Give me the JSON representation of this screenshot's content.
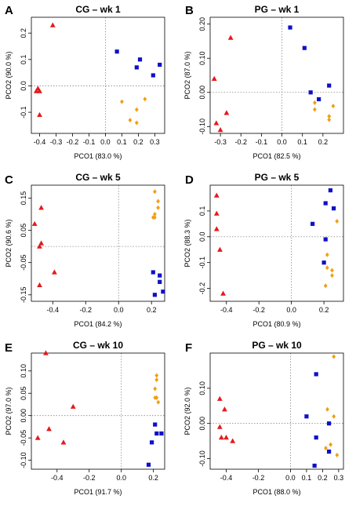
{
  "colors": {
    "triangle": "#e31a1c",
    "square": "#1010c8",
    "diamond": "#f0a010"
  },
  "chart_data": [
    {
      "type": "scatter",
      "letter": "A",
      "title": "CG – wk 1",
      "xlabel": "PCO1 (83.0 %)",
      "ylabel": "PCO2 (90.0 %)",
      "xlim": [
        -0.45,
        0.36
      ],
      "ylim": [
        -0.18,
        0.26
      ],
      "xticks": [
        "-0.4",
        "-0.3",
        "-0.2",
        "-0.1",
        "0.0",
        "0.1",
        "0.2",
        "0.3"
      ],
      "xtickvals": [
        -0.4,
        -0.3,
        -0.2,
        -0.1,
        0.0,
        0.1,
        0.2,
        0.3
      ],
      "yticks": [
        "-0.1",
        "0.0",
        "0.1",
        "0.2"
      ],
      "ytickvals": [
        -0.1,
        0.0,
        0.1,
        0.2
      ],
      "grid": "dotted zero lines",
      "series": [
        {
          "marker": "triangle",
          "points": [
            [
              -0.32,
              0.23
            ],
            [
              -0.41,
              -0.01
            ],
            [
              -0.42,
              -0.02
            ],
            [
              -0.4,
              -0.02
            ],
            [
              -0.4,
              -0.11
            ]
          ]
        },
        {
          "marker": "square",
          "points": [
            [
              0.07,
              0.13
            ],
            [
              0.21,
              0.1
            ],
            [
              0.19,
              0.07
            ],
            [
              0.33,
              0.08
            ],
            [
              0.29,
              0.04
            ]
          ]
        },
        {
          "marker": "diamond",
          "points": [
            [
              0.1,
              -0.06
            ],
            [
              0.24,
              -0.05
            ],
            [
              0.19,
              -0.09
            ],
            [
              0.15,
              -0.13
            ],
            [
              0.19,
              -0.14
            ]
          ]
        }
      ]
    },
    {
      "type": "scatter",
      "letter": "B",
      "title": "PG – wk 1",
      "xlabel": "PCO1 (82.5 %)",
      "ylabel": "PCO2 (87.0 %)",
      "xlim": [
        -0.35,
        0.3
      ],
      "ylim": [
        -0.12,
        0.22
      ],
      "xticks": [
        "-0.3",
        "-0.2",
        "-0.1",
        "0.0",
        "0.1",
        "0.2"
      ],
      "xtickvals": [
        -0.3,
        -0.2,
        -0.1,
        0.0,
        0.1,
        0.2
      ],
      "yticks": [
        "-0.10",
        "0.00",
        "0.10",
        "0.20"
      ],
      "ytickvals": [
        -0.1,
        0.0,
        0.1,
        0.2
      ],
      "grid": "dotted zero lines",
      "series": [
        {
          "marker": "triangle",
          "points": [
            [
              -0.25,
              0.16
            ],
            [
              -0.33,
              0.04
            ],
            [
              -0.27,
              -0.06
            ],
            [
              -0.32,
              -0.09
            ],
            [
              -0.3,
              -0.11
            ]
          ]
        },
        {
          "marker": "square",
          "points": [
            [
              0.04,
              0.19
            ],
            [
              0.11,
              0.13
            ],
            [
              0.23,
              0.02
            ],
            [
              0.14,
              0.0
            ],
            [
              0.18,
              -0.02
            ]
          ]
        },
        {
          "marker": "diamond",
          "points": [
            [
              0.16,
              -0.03
            ],
            [
              0.25,
              -0.04
            ],
            [
              0.16,
              -0.05
            ],
            [
              0.23,
              -0.07
            ],
            [
              0.23,
              -0.08
            ]
          ]
        }
      ]
    },
    {
      "type": "scatter",
      "letter": "C",
      "title": "CG – wk 5",
      "xlabel": "PCO1 (84.2 %)",
      "ylabel": "PCO2 (90.6 %)",
      "xlim": [
        -0.53,
        0.28
      ],
      "ylim": [
        -0.17,
        0.19
      ],
      "xticks": [
        "-0.4",
        "-0.2",
        "0.0",
        "0.2"
      ],
      "xtickvals": [
        -0.4,
        -0.2,
        0.0,
        0.2
      ],
      "yticks": [
        "-0.15",
        "-0.05",
        "0.05",
        "0.15"
      ],
      "ytickvals": [
        -0.15,
        -0.05,
        0.05,
        0.15
      ],
      "grid": "dotted zero lines",
      "series": [
        {
          "marker": "triangle",
          "points": [
            [
              -0.47,
              0.12
            ],
            [
              -0.51,
              0.07
            ],
            [
              -0.47,
              0.01
            ],
            [
              -0.48,
              0.0
            ],
            [
              -0.39,
              -0.08
            ],
            [
              -0.48,
              -0.12
            ]
          ]
        },
        {
          "marker": "square",
          "points": [
            [
              0.21,
              -0.08
            ],
            [
              0.25,
              -0.09
            ],
            [
              0.25,
              -0.11
            ],
            [
              0.27,
              -0.14
            ],
            [
              0.22,
              -0.15
            ]
          ]
        },
        {
          "marker": "diamond",
          "points": [
            [
              0.22,
              0.17
            ],
            [
              0.24,
              0.14
            ],
            [
              0.24,
              0.12
            ],
            [
              0.22,
              0.1
            ],
            [
              0.21,
              0.09
            ],
            [
              0.22,
              0.09
            ]
          ]
        }
      ]
    },
    {
      "type": "scatter",
      "letter": "D",
      "title": "PG – wk 5",
      "xlabel": "PCO1 (80.9 %)",
      "ylabel": "PCO2 (88.3 %)",
      "xlim": [
        -0.5,
        0.32
      ],
      "ylim": [
        -0.25,
        0.2
      ],
      "xticks": [
        "-0.4",
        "-0.2",
        "0.0",
        "0.2"
      ],
      "xtickvals": [
        -0.4,
        -0.2,
        0.0,
        0.2
      ],
      "yticks": [
        "-0.2",
        "-0.1",
        "0.0",
        "0.1"
      ],
      "ytickvals": [
        -0.2,
        -0.1,
        0.0,
        0.1
      ],
      "grid": "dotted zero lines",
      "series": [
        {
          "marker": "triangle",
          "points": [
            [
              -0.46,
              0.16
            ],
            [
              -0.46,
              0.09
            ],
            [
              -0.46,
              0.03
            ],
            [
              -0.44,
              -0.05
            ],
            [
              -0.42,
              -0.22
            ]
          ]
        },
        {
          "marker": "square",
          "points": [
            [
              0.24,
              0.18
            ],
            [
              0.21,
              0.13
            ],
            [
              0.26,
              0.11
            ],
            [
              0.13,
              0.05
            ],
            [
              0.21,
              -0.01
            ],
            [
              0.2,
              -0.1
            ]
          ]
        },
        {
          "marker": "diamond",
          "points": [
            [
              0.28,
              0.06
            ],
            [
              0.22,
              -0.07
            ],
            [
              0.22,
              -0.12
            ],
            [
              0.25,
              -0.13
            ],
            [
              0.25,
              -0.15
            ],
            [
              0.21,
              -0.19
            ]
          ]
        }
      ]
    },
    {
      "type": "scatter",
      "letter": "E",
      "title": "CG – wk 10",
      "xlabel": "PCO1 (91.7 %)",
      "ylabel": "PCO2 (97.0 %)",
      "xlim": [
        -0.56,
        0.27
      ],
      "ylim": [
        -0.12,
        0.14
      ],
      "xticks": [
        "-0.4",
        "-0.2",
        "0.0",
        "0.2"
      ],
      "xtickvals": [
        -0.4,
        -0.2,
        0.0,
        0.2
      ],
      "yticks": [
        "-0.10",
        "-0.05",
        "0.00",
        "0.05",
        "0.10"
      ],
      "ytickvals": [
        -0.1,
        -0.05,
        0.0,
        0.05,
        0.1
      ],
      "grid": "dotted zero lines",
      "series": [
        {
          "marker": "triangle",
          "points": [
            [
              -0.47,
              0.14
            ],
            [
              -0.3,
              0.02
            ],
            [
              -0.45,
              -0.03
            ],
            [
              -0.52,
              -0.05
            ],
            [
              -0.36,
              -0.06
            ]
          ]
        },
        {
          "marker": "square",
          "points": [
            [
              0.21,
              -0.02
            ],
            [
              0.22,
              -0.04
            ],
            [
              0.25,
              -0.04
            ],
            [
              0.19,
              -0.06
            ],
            [
              0.17,
              -0.11
            ]
          ]
        },
        {
          "marker": "diamond",
          "points": [
            [
              0.22,
              0.09
            ],
            [
              0.22,
              0.08
            ],
            [
              0.21,
              0.06
            ],
            [
              0.21,
              0.04
            ],
            [
              0.22,
              0.04
            ],
            [
              0.23,
              0.03
            ]
          ]
        }
      ]
    },
    {
      "type": "scatter",
      "letter": "F",
      "title": "PG – wk 10",
      "xlabel": "PCO1 (88.0 %)",
      "ylabel": "PCO2 (92.0 %)",
      "xlim": [
        -0.5,
        0.33
      ],
      "ylim": [
        -0.13,
        0.2
      ],
      "xticks": [
        "-0.4",
        "-0.2",
        "0.0",
        "0.1",
        "0.2",
        "0.3"
      ],
      "xtickvals": [
        -0.4,
        -0.2,
        0.0,
        0.1,
        0.2,
        0.3
      ],
      "yticks": [
        "-0.10",
        "0.00",
        "0.10"
      ],
      "ytickvals": [
        -0.1,
        0.0,
        0.1
      ],
      "grid": "dotted zero lines",
      "series": [
        {
          "marker": "triangle",
          "points": [
            [
              -0.44,
              0.07
            ],
            [
              -0.41,
              0.04
            ],
            [
              -0.44,
              -0.01
            ],
            [
              -0.43,
              -0.04
            ],
            [
              -0.36,
              -0.05
            ],
            [
              -0.4,
              -0.04
            ]
          ]
        },
        {
          "marker": "square",
          "points": [
            [
              0.16,
              0.14
            ],
            [
              0.1,
              0.02
            ],
            [
              0.24,
              0.0
            ],
            [
              0.16,
              -0.04
            ],
            [
              0.24,
              -0.08
            ],
            [
              0.15,
              -0.12
            ]
          ]
        },
        {
          "marker": "diamond",
          "points": [
            [
              0.27,
              0.19
            ],
            [
              0.23,
              0.04
            ],
            [
              0.27,
              0.02
            ],
            [
              0.25,
              -0.06
            ],
            [
              0.22,
              -0.07
            ],
            [
              0.29,
              -0.09
            ]
          ]
        }
      ]
    }
  ]
}
